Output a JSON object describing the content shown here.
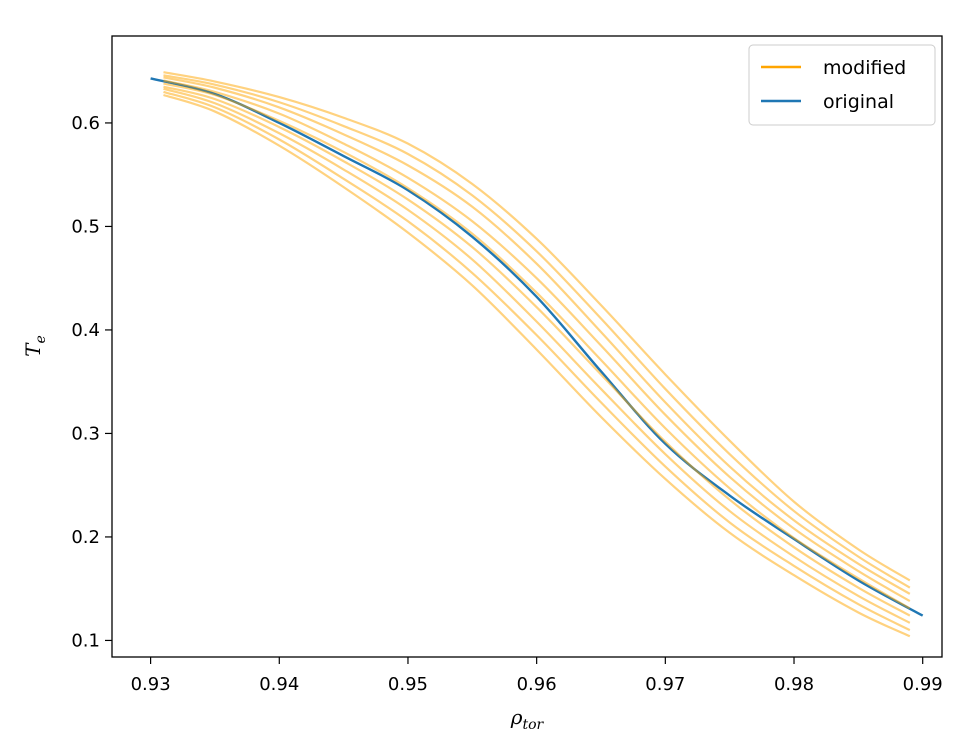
{
  "chart_data": {
    "type": "line",
    "title": "",
    "xlabel": "ρ",
    "xlabel_sub": "tor",
    "ylabel": "T",
    "ylabel_sub": "e",
    "xlim": [
      0.927,
      0.9915
    ],
    "ylim": [
      0.084,
      0.684
    ],
    "xticks": [
      0.93,
      0.94,
      0.95,
      0.96,
      0.97,
      0.98,
      0.99
    ],
    "xtick_labels": [
      "0.93",
      "0.94",
      "0.95",
      "0.96",
      "0.97",
      "0.98",
      "0.99"
    ],
    "yticks": [
      0.1,
      0.2,
      0.3,
      0.4,
      0.5,
      0.6
    ],
    "ytick_labels": [
      "0.1",
      "0.2",
      "0.3",
      "0.4",
      "0.5",
      "0.6"
    ],
    "grid": false,
    "legend_position": "top-right",
    "colors": {
      "modified": "#ffa500",
      "original": "#1f77b4"
    },
    "series": [
      {
        "name": "original",
        "x": [
          0.93,
          0.935,
          0.94,
          0.945,
          0.95,
          0.955,
          0.96,
          0.965,
          0.97,
          0.975,
          0.98,
          0.985,
          0.99
        ],
        "y": [
          0.643,
          0.628,
          0.6,
          0.568,
          0.535,
          0.49,
          0.432,
          0.36,
          0.29,
          0.24,
          0.198,
          0.158,
          0.124
        ]
      },
      {
        "name": "modified",
        "x": [
          0.931,
          0.935,
          0.94,
          0.945,
          0.95,
          0.955,
          0.96,
          0.965,
          0.97,
          0.975,
          0.98,
          0.985,
          0.989
        ],
        "y": [
          0.649,
          0.64,
          0.625,
          0.605,
          0.58,
          0.541,
          0.488,
          0.424,
          0.357,
          0.293,
          0.234,
          0.188,
          0.158
        ]
      },
      {
        "x": [
          0.931,
          0.935,
          0.94,
          0.945,
          0.95,
          0.955,
          0.96,
          0.965,
          0.97,
          0.975,
          0.98,
          0.985,
          0.989
        ],
        "y": [
          0.646,
          0.637,
          0.62,
          0.597,
          0.57,
          0.53,
          0.476,
          0.411,
          0.343,
          0.28,
          0.225,
          0.181,
          0.151
        ]
      },
      {
        "x": [
          0.931,
          0.935,
          0.94,
          0.945,
          0.95,
          0.955,
          0.96,
          0.965,
          0.97,
          0.975,
          0.98,
          0.985,
          0.989
        ],
        "y": [
          0.644,
          0.634,
          0.615,
          0.589,
          0.559,
          0.519,
          0.464,
          0.398,
          0.33,
          0.268,
          0.216,
          0.174,
          0.145
        ]
      },
      {
        "x": [
          0.931,
          0.935,
          0.94,
          0.945,
          0.95,
          0.955,
          0.96,
          0.965,
          0.97,
          0.975,
          0.98,
          0.985,
          0.989
        ],
        "y": [
          0.641,
          0.63,
          0.609,
          0.58,
          0.547,
          0.505,
          0.45,
          0.385,
          0.318,
          0.258,
          0.208,
          0.167,
          0.138
        ]
      },
      {
        "x": [
          0.931,
          0.935,
          0.94,
          0.945,
          0.95,
          0.955,
          0.96,
          0.965,
          0.97,
          0.975,
          0.98,
          0.985,
          0.989
        ],
        "y": [
          0.638,
          0.627,
          0.602,
          0.572,
          0.537,
          0.493,
          0.436,
          0.371,
          0.305,
          0.247,
          0.199,
          0.16,
          0.131
        ]
      },
      {
        "x": [
          0.931,
          0.935,
          0.94,
          0.945,
          0.95,
          0.955,
          0.96,
          0.965,
          0.97,
          0.975,
          0.98,
          0.985,
          0.989
        ],
        "y": [
          0.635,
          0.623,
          0.596,
          0.563,
          0.526,
          0.48,
          0.422,
          0.357,
          0.292,
          0.236,
          0.19,
          0.151,
          0.124
        ]
      },
      {
        "x": [
          0.931,
          0.935,
          0.94,
          0.945,
          0.95,
          0.955,
          0.96,
          0.965,
          0.97,
          0.975,
          0.98,
          0.985,
          0.989
        ],
        "y": [
          0.633,
          0.619,
          0.59,
          0.555,
          0.516,
          0.468,
          0.408,
          0.343,
          0.28,
          0.225,
          0.181,
          0.143,
          0.117
        ]
      },
      {
        "x": [
          0.931,
          0.935,
          0.94,
          0.945,
          0.95,
          0.955,
          0.96,
          0.965,
          0.97,
          0.975,
          0.98,
          0.985,
          0.989
        ],
        "y": [
          0.63,
          0.615,
          0.584,
          0.546,
          0.505,
          0.455,
          0.395,
          0.33,
          0.268,
          0.214,
          0.172,
          0.135,
          0.11
        ]
      },
      {
        "x": [
          0.931,
          0.935,
          0.94,
          0.945,
          0.95,
          0.955,
          0.96,
          0.965,
          0.97,
          0.975,
          0.98,
          0.985,
          0.989
        ],
        "y": [
          0.627,
          0.611,
          0.578,
          0.538,
          0.494,
          0.443,
          0.381,
          0.316,
          0.256,
          0.204,
          0.163,
          0.127,
          0.104
        ]
      }
    ],
    "legend": [
      {
        "label": "modified",
        "color": "#ffa500"
      },
      {
        "label": "original",
        "color": "#1f77b4"
      }
    ]
  }
}
